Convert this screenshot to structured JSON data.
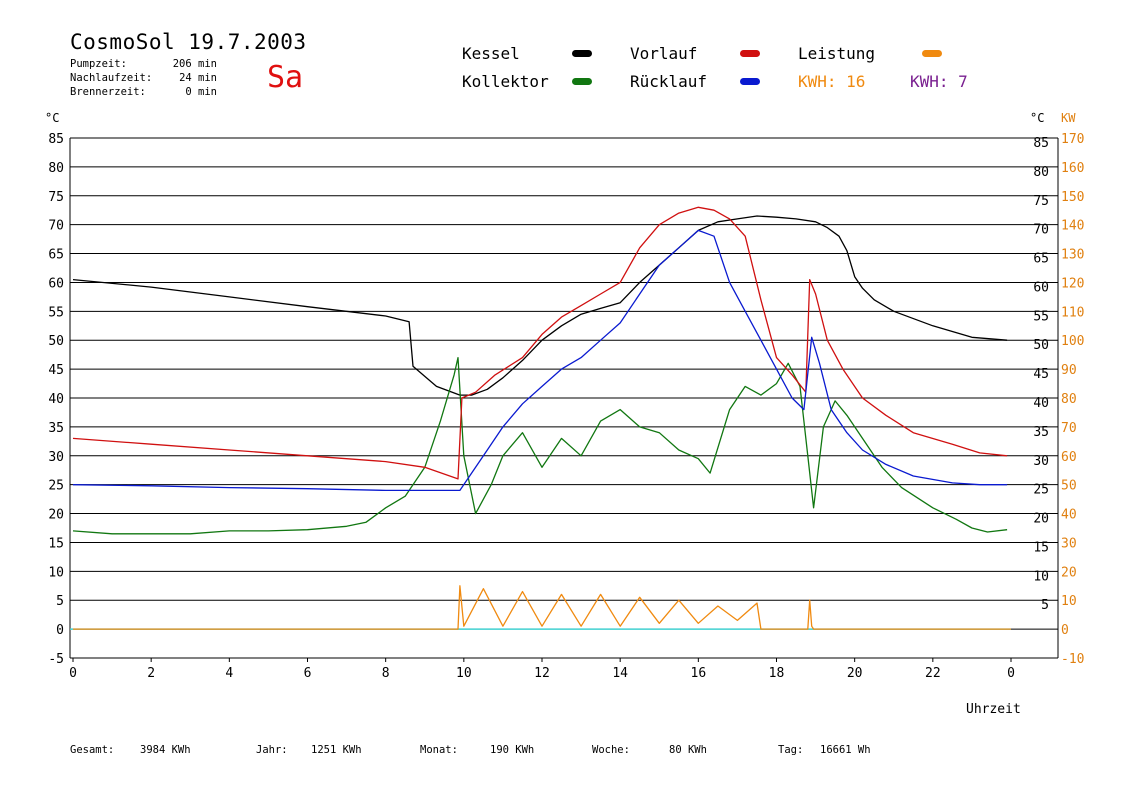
{
  "header": {
    "title": "CosmoSol 19.7.2003",
    "day": "Sa",
    "stats": [
      {
        "label": "Pumpzeit:",
        "value": "206 min"
      },
      {
        "label": "Nachlaufzeit:",
        "value": "24 min"
      },
      {
        "label": "Brennerzeit:",
        "value": "0 min"
      }
    ]
  },
  "legend": {
    "kessel": "Kessel",
    "kollektor": "Kollektor",
    "vorlauf": "Vorlauf",
    "ruecklauf": "Rücklauf",
    "leistung": "Leistung",
    "kwh1": "KWH: 16",
    "kwh2": "KWH: 7"
  },
  "footer": {
    "gesamt_label": "Gesamt:",
    "gesamt_value": "3984 KWh",
    "jahr_label": "Jahr:",
    "jahr_value": "1251 KWh",
    "monat_label": "Monat:",
    "monat_value": "190 KWh",
    "woche_label": "Woche:",
    "woche_value": "80 KWh",
    "tag_label": "Tag:",
    "tag_value": "16661 Wh"
  },
  "colors": {
    "kessel": "#000000",
    "kollektor": "#117711",
    "vorlauf": "#d01010",
    "ruecklauf": "#0a1ad0",
    "leistung": "#f08a10",
    "purple": "#7a2090",
    "zero": "#40d0d0"
  },
  "chart_data": {
    "type": "line",
    "xlabel": "Uhrzeit",
    "ylabel_left": "°C",
    "ylabel_right_unit1": "°C",
    "ylabel_right_unit2": "KW",
    "xlim": [
      0,
      24
    ],
    "ylim": [
      -5,
      85
    ],
    "x_ticks": [
      "0",
      "2",
      "4",
      "6",
      "8",
      "10",
      "12",
      "14",
      "16",
      "18",
      "20",
      "22",
      "0"
    ],
    "y_ticks_left": [
      "85",
      "80",
      "75",
      "70",
      "65",
      "60",
      "55",
      "50",
      "45",
      "40",
      "35",
      "30",
      "25",
      "20",
      "15",
      "10",
      "5",
      "0",
      "-5"
    ],
    "y_ticks_right_c": [
      "85",
      "80",
      "75",
      "70",
      "65",
      "60",
      "55",
      "50",
      "45",
      "40",
      "35",
      "30",
      "25",
      "20",
      "15",
      "10",
      "5"
    ],
    "y_ticks_right_kw": [
      "170",
      "160",
      "150",
      "140",
      "130",
      "120",
      "110",
      "100",
      "90",
      "80",
      "70",
      "60",
      "50",
      "40",
      "30",
      "20",
      "10",
      "0",
      "-10"
    ],
    "grid": true,
    "series": [
      {
        "name": "Kessel",
        "color": "#000000",
        "x": [
          0,
          2,
          4,
          6,
          8,
          8.6,
          8.7,
          9.3,
          9.9,
          10.2,
          10.6,
          11.0,
          11.5,
          12.0,
          12.5,
          13.0,
          13.5,
          14.0,
          14.5,
          15.0,
          15.5,
          16.0,
          16.5,
          17.0,
          17.5,
          18.0,
          18.5,
          19.0,
          19.3,
          19.6,
          19.8,
          20.0,
          20.2,
          20.5,
          21.0,
          22.0,
          23.0,
          23.9
        ],
        "y": [
          60.5,
          59.2,
          57.5,
          55.8,
          54.2,
          53.2,
          45.5,
          42.0,
          40.5,
          40.5,
          41.5,
          43.5,
          46.5,
          50.0,
          52.5,
          54.5,
          55.5,
          56.5,
          60.0,
          63.0,
          66.0,
          69.0,
          70.5,
          71.0,
          71.5,
          71.3,
          71.0,
          70.5,
          69.5,
          68.0,
          65.5,
          61.0,
          59.0,
          57.0,
          55.0,
          52.5,
          50.5,
          50.0
        ]
      },
      {
        "name": "Kollektor",
        "color": "#117711",
        "x": [
          0,
          1,
          2,
          3,
          4,
          5,
          6,
          7,
          7.5,
          8,
          8.5,
          9,
          9.4,
          9.75,
          9.85,
          10.0,
          10.3,
          10.7,
          11.0,
          11.5,
          12.0,
          12.5,
          13.0,
          13.5,
          14.0,
          14.5,
          15.0,
          15.5,
          16.0,
          16.3,
          16.8,
          17.2,
          17.6,
          18.0,
          18.3,
          18.6,
          18.8,
          18.95,
          19.2,
          19.5,
          19.8,
          20.2,
          20.7,
          21.2,
          22.0,
          22.6,
          23.0,
          23.4,
          23.9
        ],
        "y": [
          17.0,
          16.5,
          16.5,
          16.5,
          17.0,
          17.0,
          17.2,
          17.8,
          18.5,
          21.0,
          23.0,
          28.0,
          36.0,
          44.0,
          47.0,
          30.0,
          20.0,
          25.0,
          30.0,
          34.0,
          28.0,
          33.0,
          30.0,
          36.0,
          38.0,
          35.0,
          34.0,
          31.0,
          29.5,
          27.0,
          38.0,
          42.0,
          40.5,
          42.5,
          46.0,
          42.0,
          30.0,
          21.0,
          35.0,
          39.5,
          37.0,
          33.0,
          28.0,
          24.5,
          21.0,
          19.0,
          17.5,
          16.8,
          17.2
        ]
      },
      {
        "name": "Vorlauf",
        "color": "#d01010",
        "x": [
          0,
          2,
          4,
          6,
          8,
          9,
          9.85,
          9.95,
          10.3,
          10.8,
          11.5,
          12.0,
          12.5,
          13.0,
          13.5,
          14.0,
          14.5,
          15.0,
          15.5,
          16.0,
          16.4,
          16.8,
          17.2,
          17.6,
          18.0,
          18.4,
          18.75,
          18.85,
          19.0,
          19.3,
          19.7,
          20.2,
          20.8,
          21.5,
          22.5,
          23.2,
          23.9
        ],
        "y": [
          33.0,
          32.0,
          31.0,
          30.0,
          29.0,
          28.0,
          26.0,
          40.0,
          41.0,
          44.0,
          47.0,
          51.0,
          54.0,
          56.0,
          58.0,
          60.0,
          66.0,
          70.0,
          72.0,
          73.0,
          72.5,
          71.0,
          68.0,
          57.0,
          47.0,
          44.0,
          41.0,
          60.5,
          58.0,
          50.0,
          45.0,
          40.0,
          37.0,
          34.0,
          32.0,
          30.5,
          30.0
        ]
      },
      {
        "name": "Rücklauf",
        "color": "#0a1ad0",
        "x": [
          0,
          2,
          4,
          6,
          8,
          9,
          9.8,
          9.9,
          10.2,
          10.6,
          11.0,
          11.5,
          12.0,
          12.5,
          13.0,
          13.5,
          14.0,
          14.5,
          15.0,
          15.5,
          16.0,
          16.4,
          16.8,
          17.2,
          17.6,
          18.0,
          18.4,
          18.7,
          18.9,
          19.1,
          19.4,
          19.8,
          20.2,
          20.8,
          21.5,
          22.5,
          23.2,
          23.9
        ],
        "y": [
          25.0,
          24.8,
          24.5,
          24.3,
          24.0,
          24.0,
          24.0,
          24.0,
          27.0,
          31.0,
          35.0,
          39.0,
          42.0,
          45.0,
          47.0,
          50.0,
          53.0,
          58.0,
          63.0,
          66.0,
          69.0,
          68.0,
          60.0,
          55.0,
          50.0,
          45.0,
          40.0,
          38.0,
          50.5,
          46.0,
          38.0,
          34.0,
          31.0,
          28.5,
          26.5,
          25.3,
          25.0,
          25.0
        ]
      },
      {
        "name": "Leistung",
        "color": "#f08a10",
        "axis": "right_kw",
        "x": [
          0,
          9.85,
          9.9,
          10.0,
          10.5,
          11.0,
          11.5,
          12.0,
          12.5,
          13.0,
          13.5,
          14.0,
          14.5,
          15.0,
          15.5,
          16.0,
          16.5,
          17.0,
          17.5,
          17.6,
          18.8,
          18.85,
          18.9,
          18.95,
          24
        ],
        "y": [
          0,
          0,
          15,
          1,
          14,
          1,
          13,
          1,
          12,
          1,
          12,
          1,
          11,
          2,
          10,
          2,
          8,
          3,
          9,
          0,
          0,
          10,
          1,
          0,
          0
        ]
      }
    ]
  }
}
